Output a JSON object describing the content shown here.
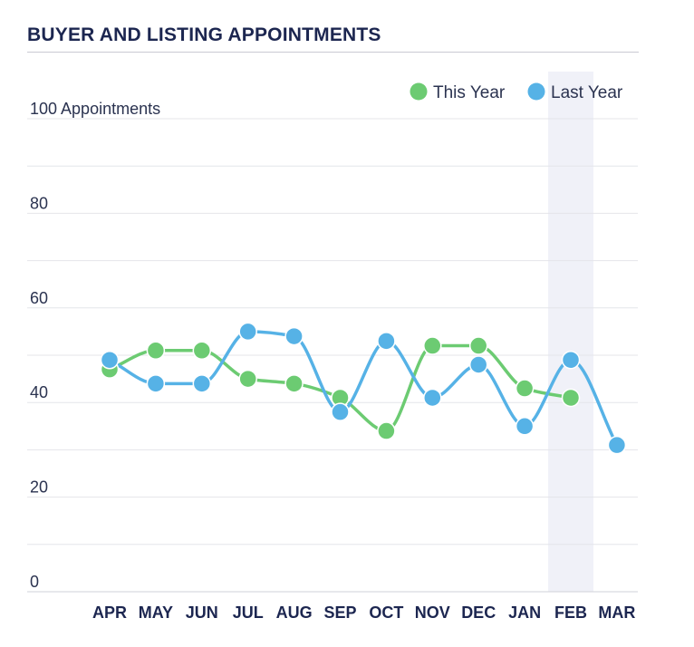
{
  "chart_data": {
    "type": "line",
    "title": "BUYER AND LISTING APPOINTMENTS",
    "ylabel": "Appointments",
    "xlabel": "",
    "ylim": [
      0,
      100
    ],
    "y_ticks": [
      {
        "value": 100,
        "label": "100 Appointments"
      },
      {
        "value": 80,
        "label": "80"
      },
      {
        "value": 60,
        "label": "60"
      },
      {
        "value": 40,
        "label": "40"
      },
      {
        "value": 20,
        "label": "20"
      },
      {
        "value": 0,
        "label": "0"
      }
    ],
    "grid": true,
    "legend_position": "top-right",
    "highlighted_category": "FEB",
    "categories": [
      "APR",
      "MAY",
      "JUN",
      "JUL",
      "AUG",
      "SEP",
      "OCT",
      "NOV",
      "DEC",
      "JAN",
      "FEB",
      "MAR"
    ],
    "series": [
      {
        "name": "This Year",
        "color": "#6ccb72",
        "values": [
          47,
          51,
          51,
          45,
          44,
          41,
          34,
          52,
          52,
          43,
          41,
          null
        ]
      },
      {
        "name": "Last Year",
        "color": "#56b2e6",
        "values": [
          49,
          44,
          44,
          55,
          54,
          38,
          53,
          41,
          48,
          35,
          49,
          31
        ]
      }
    ]
  }
}
